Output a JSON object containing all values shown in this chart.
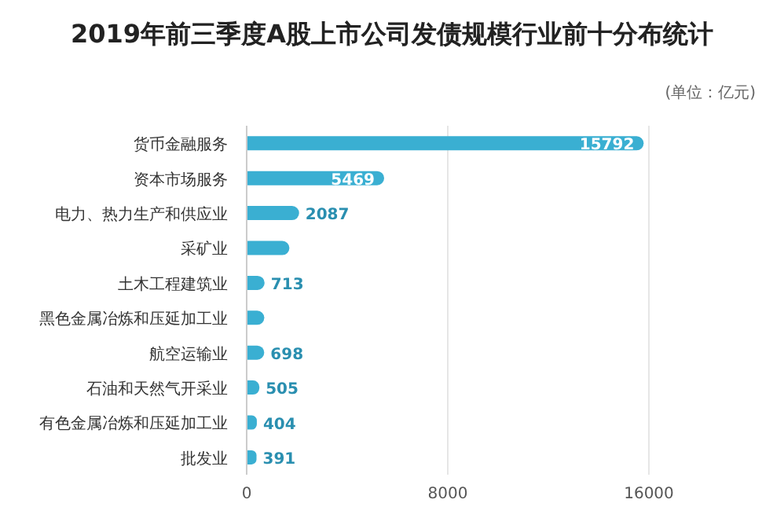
{
  "chart_data": {
    "type": "bar",
    "orientation": "horizontal",
    "title": "2019年前三季度A股上市公司发债规模行业前十分布统计",
    "annotations": [
      "(单位：亿元)"
    ],
    "categories": [
      "货币金融服务",
      "资本市场服务",
      "电力、热力生产和供应业",
      "采矿业",
      "土木工程建筑业",
      "黑色金属冶炼和压延加工业",
      "航空运输业",
      "石油和天然气开采业",
      "有色金属冶炼和压延加工业",
      "批发业"
    ],
    "values": [
      15792,
      5469,
      2087,
      1700,
      713,
      700,
      698,
      505,
      404,
      391
    ],
    "value_labels": [
      "15792",
      "5469",
      "2087",
      null,
      "713",
      null,
      "698",
      "505",
      "404",
      "391"
    ],
    "color": "#3aafd2",
    "xlim": [
      0,
      16000
    ],
    "xticks": [
      0,
      8000,
      16000
    ],
    "grid": "x"
  }
}
